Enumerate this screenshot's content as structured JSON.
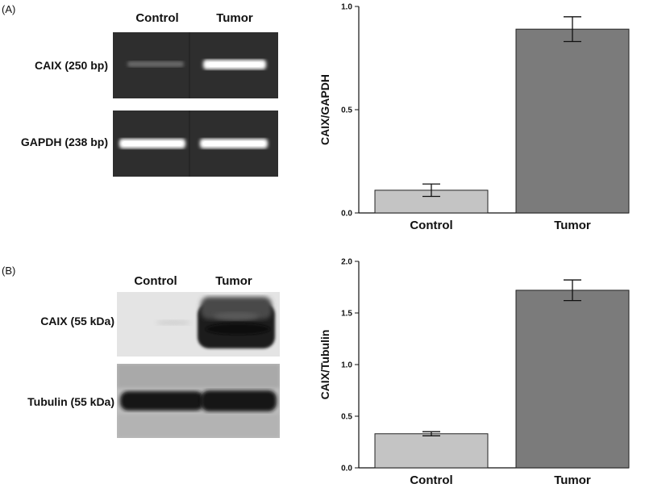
{
  "panel_a": {
    "letter": "(A)",
    "lanes": [
      "Control",
      "Tumor"
    ],
    "bands": [
      "CAIX (250 bp)",
      "GAPDH (238 bp)"
    ]
  },
  "panel_b": {
    "letter": "(B)",
    "lanes": [
      "Control",
      "Tumor"
    ],
    "bands": [
      "CAIX (55 kDa)",
      "Tubulin (55 kDa)"
    ]
  },
  "colors": {
    "control_bar": "#c4c4c4",
    "tumor_bar": "#7b7b7b",
    "gel_bg": "#2e2e2e",
    "blot_bg": "#e6e6e6"
  },
  "chart_data": [
    {
      "type": "bar",
      "categories": [
        "Control",
        "Tumor"
      ],
      "values": [
        0.11,
        0.89
      ],
      "errors": [
        0.03,
        0.06
      ],
      "ylabel": "CAIX/GAPDH",
      "xlabel": "",
      "ylim": [
        0,
        1.0
      ],
      "yticks": [
        "0.0",
        "0.5",
        "1.0"
      ],
      "ytick_values": [
        0,
        0.5,
        1.0
      ],
      "grid": false
    },
    {
      "type": "bar",
      "categories": [
        "Control",
        "Tumor"
      ],
      "values": [
        0.33,
        1.72
      ],
      "errors": [
        0.02,
        0.1
      ],
      "ylabel": "CAIX/Tubulin",
      "xlabel": "",
      "ylim": [
        0,
        2.0
      ],
      "yticks": [
        "0.0",
        "0.5",
        "1.0",
        "1.5",
        "2.0"
      ],
      "ytick_values": [
        0,
        0.5,
        1.0,
        1.5,
        2.0
      ],
      "grid": false
    }
  ]
}
